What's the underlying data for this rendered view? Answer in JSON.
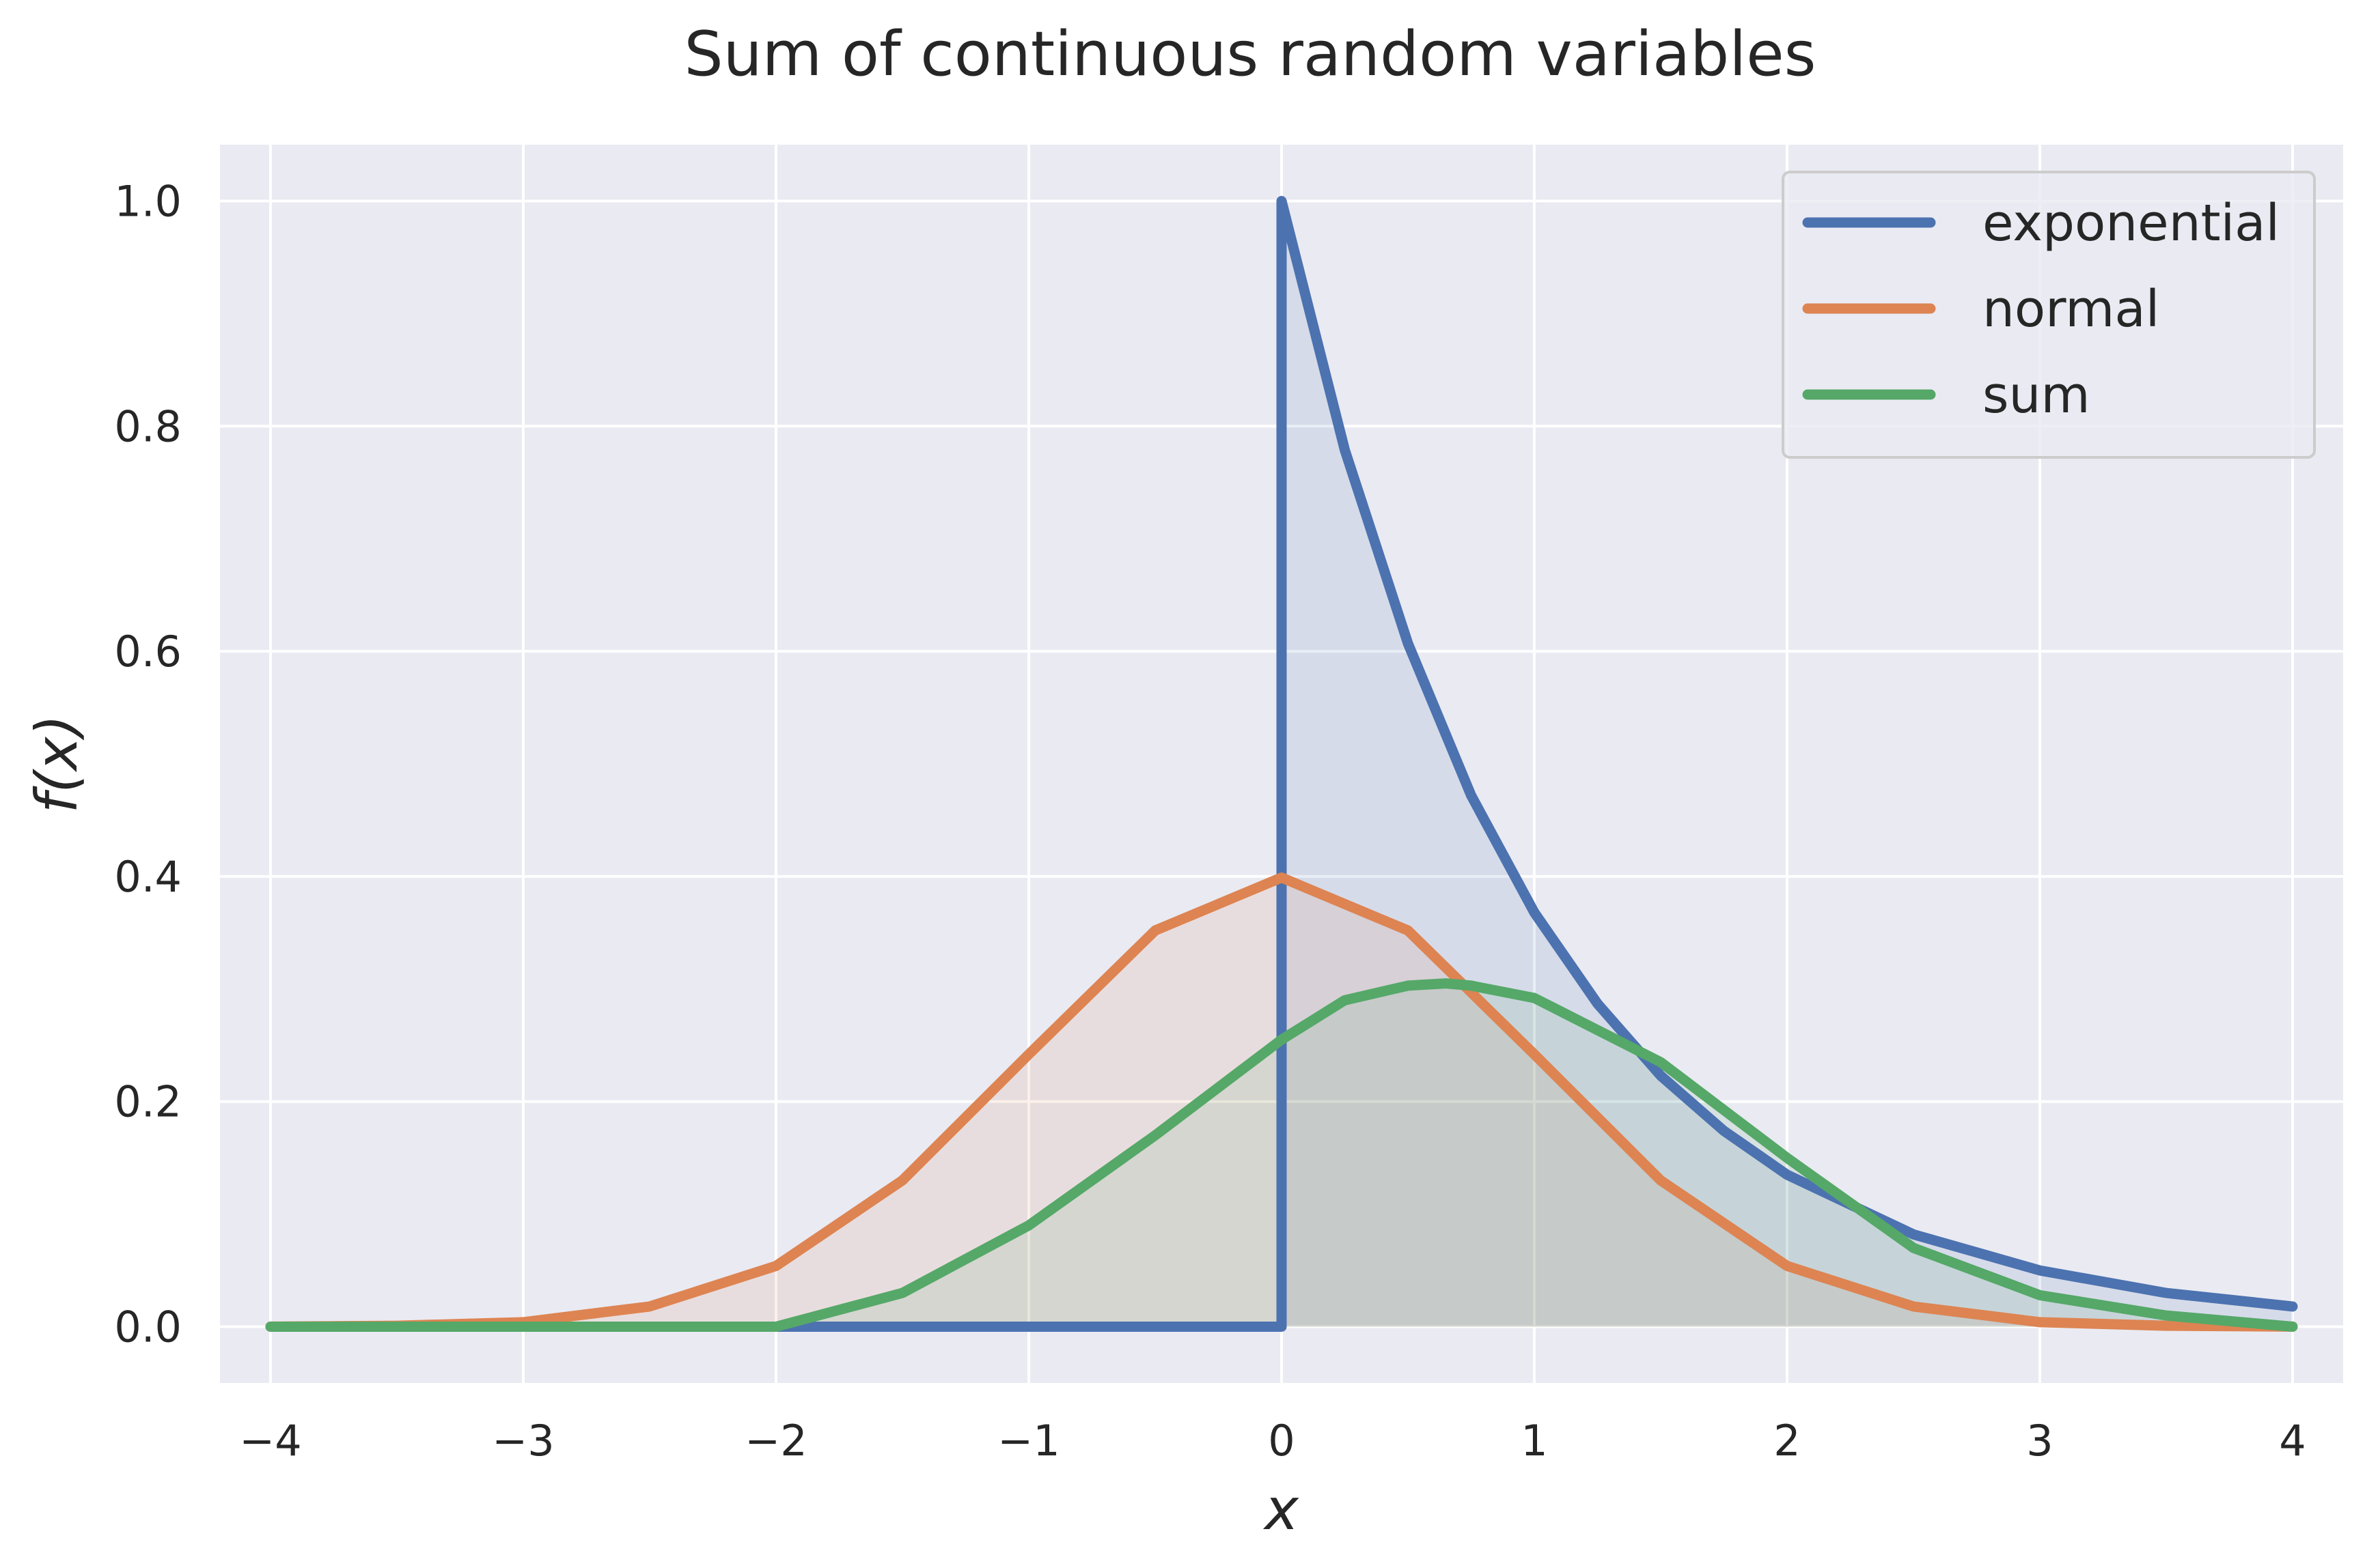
{
  "chart_data": {
    "type": "line",
    "title": "Sum of continuous random variables",
    "xlabel": "x",
    "ylabel": "f(x)",
    "xlim": [
      -4.2,
      4.2
    ],
    "ylim": [
      -0.05,
      1.05
    ],
    "xticks": [
      -4,
      -3,
      -2,
      -1,
      0,
      1,
      2,
      3,
      4
    ],
    "xtick_labels": [
      "−4",
      "−3",
      "−2",
      "−1",
      "0",
      "1",
      "2",
      "3",
      "4"
    ],
    "yticks": [
      0.0,
      0.2,
      0.4,
      0.6,
      0.8,
      1.0
    ],
    "ytick_labels": [
      "0.0",
      "0.2",
      "0.4",
      "0.6",
      "0.8",
      "1.0"
    ],
    "grid": true,
    "legend_position": "top-right",
    "background": "#eaeaf2",
    "series": [
      {
        "name": "exponential",
        "color": "#4c72b0",
        "x": [
          -4,
          -3,
          -2,
          -1,
          0,
          0,
          0.25,
          0.5,
          0.75,
          1,
          1.25,
          1.5,
          1.75,
          2,
          2.5,
          3,
          3.5,
          4
        ],
        "y": [
          0,
          0,
          0,
          0,
          0,
          1.0,
          0.779,
          0.607,
          0.472,
          0.368,
          0.287,
          0.223,
          0.174,
          0.135,
          0.082,
          0.05,
          0.03,
          0.018
        ]
      },
      {
        "name": "normal",
        "color": "#dd8452",
        "x": [
          -4,
          -3.5,
          -3,
          -2.5,
          -2,
          -1.5,
          -1,
          -0.5,
          0,
          0.5,
          1,
          1.5,
          2,
          2.5,
          3,
          3.5,
          4
        ],
        "y": [
          0.0001,
          0.0009,
          0.004,
          0.018,
          0.054,
          0.13,
          0.242,
          0.352,
          0.399,
          0.352,
          0.242,
          0.13,
          0.054,
          0.018,
          0.004,
          0.0009,
          0.0001
        ]
      },
      {
        "name": "sum",
        "color": "#55a868",
        "x": [
          -4,
          -3,
          -2,
          -1.5,
          -1,
          -0.5,
          0,
          0.25,
          0.5,
          0.65,
          0.75,
          1,
          1.5,
          2,
          2.5,
          3,
          3.5,
          4
        ],
        "y": [
          0,
          0,
          0,
          0.03,
          0.09,
          0.17,
          0.255,
          0.29,
          0.303,
          0.305,
          0.303,
          0.292,
          0.235,
          0.15,
          0.07,
          0.028,
          0.01,
          0
        ]
      }
    ]
  }
}
